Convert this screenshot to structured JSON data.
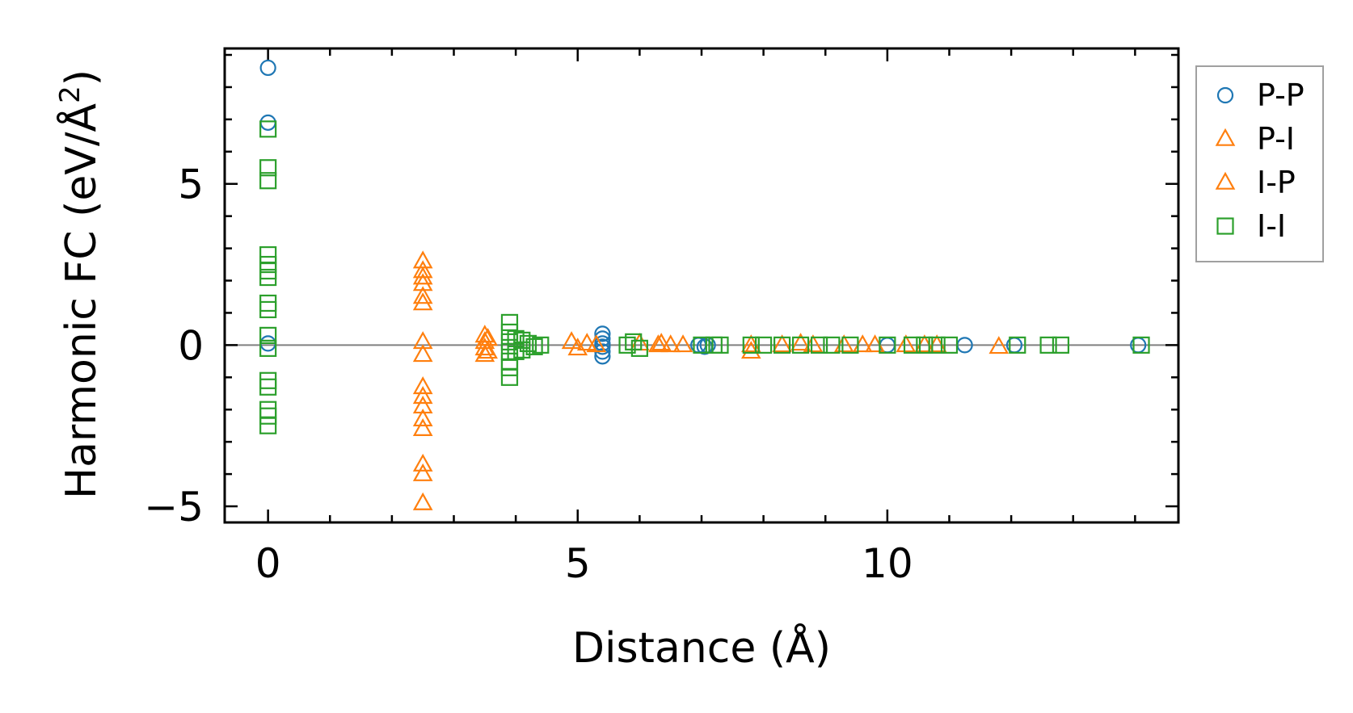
{
  "chart_data": {
    "type": "scatter",
    "title": "",
    "xlabel": "Distance (Å)",
    "ylabel": "Harmonic FC (eV/Å²)",
    "ylabel_parts": {
      "main": "Harmonic FC (eV/Å",
      "sup": "2",
      "close": ")"
    },
    "xlim": [
      -0.7,
      14.7
    ],
    "ylim": [
      -5.5,
      9.2
    ],
    "xticks": [
      0,
      5,
      10
    ],
    "xtick_labels": [
      "0",
      "5",
      "10"
    ],
    "yticks": [
      -5,
      0,
      5
    ],
    "ytick_labels": [
      "−5",
      "0",
      "5"
    ],
    "reference_line_y": 0,
    "legend_position": "outside-right",
    "series": [
      {
        "name": "P-P",
        "marker": "circle",
        "color": "#1f77b4",
        "filled": false,
        "points": [
          [
            0,
            8.6
          ],
          [
            0,
            6.9
          ],
          [
            0,
            0.05
          ],
          [
            5.4,
            0.35
          ],
          [
            5.4,
            0.2
          ],
          [
            5.4,
            0.05
          ],
          [
            5.4,
            -0.05
          ],
          [
            5.4,
            -0.2
          ],
          [
            5.4,
            -0.35
          ],
          [
            6.95,
            0
          ],
          [
            7.05,
            -0.05
          ],
          [
            7.1,
            0
          ],
          [
            10,
            0
          ],
          [
            11.25,
            0
          ],
          [
            12.05,
            0
          ],
          [
            14.05,
            0
          ]
        ]
      },
      {
        "name": "P-I",
        "marker": "triangle",
        "color": "#ff7f0e",
        "filled": false,
        "points": [
          [
            2.5,
            2.6
          ],
          [
            2.5,
            2.3
          ],
          [
            2.5,
            2.1
          ],
          [
            2.5,
            1.9
          ],
          [
            2.5,
            1.5
          ],
          [
            2.5,
            1.3
          ],
          [
            2.5,
            0.1
          ],
          [
            2.5,
            -0.3
          ],
          [
            2.5,
            -1.3
          ],
          [
            2.5,
            -1.6
          ],
          [
            2.5,
            -1.9
          ],
          [
            2.5,
            -2.3
          ],
          [
            2.5,
            -2.6
          ],
          [
            2.5,
            -3.7
          ],
          [
            2.5,
            -4.0
          ],
          [
            2.5,
            -4.9
          ],
          [
            3.5,
            0.3
          ],
          [
            3.5,
            0.1
          ],
          [
            3.5,
            -0.1
          ],
          [
            3.5,
            -0.3
          ],
          [
            4.9,
            0.1
          ],
          [
            5.15,
            0.05
          ],
          [
            5.3,
            0
          ],
          [
            6.0,
            0.05
          ],
          [
            6.3,
            0
          ],
          [
            6.5,
            0
          ],
          [
            6.7,
            0
          ],
          [
            7.8,
            0
          ],
          [
            8.3,
            0
          ],
          [
            8.8,
            0
          ],
          [
            9.3,
            0
          ],
          [
            9.8,
            0
          ],
          [
            10.3,
            0
          ],
          [
            10.8,
            0
          ],
          [
            11.8,
            -0.05
          ]
        ]
      },
      {
        "name": "I-P",
        "marker": "triangle",
        "color": "#ff7f0e",
        "filled": false,
        "points": [
          [
            3.55,
            0.2
          ],
          [
            3.55,
            -0.2
          ],
          [
            5.0,
            -0.1
          ],
          [
            6.35,
            0.05
          ],
          [
            7.8,
            -0.2
          ],
          [
            8.6,
            0.05
          ],
          [
            9.6,
            0
          ],
          [
            10.6,
            0
          ]
        ]
      },
      {
        "name": "I-I",
        "marker": "square",
        "color": "#2ca02c",
        "filled": false,
        "points": [
          [
            0,
            6.7
          ],
          [
            0,
            5.5
          ],
          [
            0,
            5.1
          ],
          [
            0,
            2.8
          ],
          [
            0,
            2.5
          ],
          [
            0,
            2.3
          ],
          [
            0,
            2.1
          ],
          [
            0,
            1.3
          ],
          [
            0,
            1.1
          ],
          [
            0,
            0.3
          ],
          [
            0,
            -0.1
          ],
          [
            0,
            -1.1
          ],
          [
            0,
            -1.3
          ],
          [
            0,
            -2.0
          ],
          [
            0,
            -2.2
          ],
          [
            0,
            -2.5
          ],
          [
            3.9,
            0.7
          ],
          [
            3.9,
            0.4
          ],
          [
            3.9,
            0.1
          ],
          [
            3.9,
            -0.2
          ],
          [
            3.9,
            -0.5
          ],
          [
            3.9,
            -0.7
          ],
          [
            3.9,
            -1.0
          ],
          [
            4.0,
            0.2
          ],
          [
            4.0,
            -0.2
          ],
          [
            4.1,
            0.15
          ],
          [
            4.1,
            -0.15
          ],
          [
            4.2,
            0.05
          ],
          [
            4.3,
            -0.05
          ],
          [
            4.4,
            0
          ],
          [
            5.8,
            0
          ],
          [
            5.9,
            0.1
          ],
          [
            6.0,
            -0.1
          ],
          [
            7.0,
            0
          ],
          [
            7.2,
            0
          ],
          [
            7.3,
            0
          ],
          [
            7.8,
            0
          ],
          [
            8.0,
            0
          ],
          [
            8.3,
            0
          ],
          [
            8.6,
            0
          ],
          [
            8.9,
            0
          ],
          [
            9.1,
            0
          ],
          [
            9.4,
            0
          ],
          [
            10.0,
            0
          ],
          [
            10.4,
            0
          ],
          [
            10.6,
            0
          ],
          [
            10.8,
            0
          ],
          [
            11.0,
            0
          ],
          [
            12.1,
            0
          ],
          [
            12.6,
            0
          ],
          [
            12.8,
            0
          ],
          [
            14.1,
            0
          ]
        ]
      }
    ]
  }
}
